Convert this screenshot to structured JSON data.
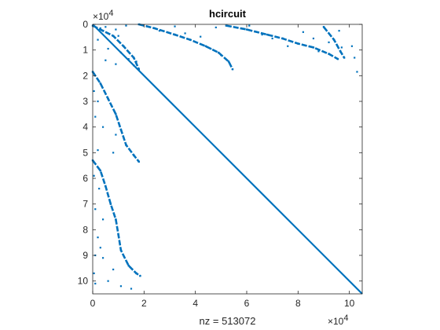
{
  "chart_data": {
    "type": "scatter",
    "subtype": "sparsity-pattern (spy)",
    "title": "hcircuit",
    "xlabel": "nz = 513072",
    "ylabel": "",
    "x_multiplier": "×10",
    "x_exponent": "4",
    "y_multiplier": "×10",
    "y_exponent": "4",
    "xlim": [
      0,
      10.5
    ],
    "ylim": [
      10.5,
      0
    ],
    "y_reversed": true,
    "xticks": [
      0,
      2,
      4,
      6,
      8,
      10
    ],
    "yticks": [
      0,
      1,
      2,
      3,
      4,
      5,
      6,
      7,
      8,
      9,
      10
    ],
    "xtick_labels": [
      "0",
      "2",
      "4",
      "6",
      "8",
      "10"
    ],
    "ytick_labels": [
      "0",
      "1",
      "2",
      "3",
      "4",
      "5",
      "6",
      "7",
      "8",
      "9",
      "10"
    ],
    "grid": false,
    "marker_color": "#0072BD",
    "series": [
      {
        "kind": "diagonal",
        "points": [
          [
            0,
            0
          ],
          [
            10.5,
            10.5
          ]
        ]
      },
      {
        "kind": "band",
        "points": [
          [
            0.0,
            0.05
          ],
          [
            0.4,
            0.25
          ],
          [
            0.8,
            0.45
          ],
          [
            1.2,
            0.85
          ],
          [
            1.6,
            1.3
          ],
          [
            1.8,
            1.75
          ]
        ]
      },
      {
        "kind": "band",
        "points": [
          [
            1.8,
            0.0
          ],
          [
            2.4,
            0.15
          ],
          [
            3.2,
            0.4
          ],
          [
            3.8,
            0.6
          ],
          [
            4.4,
            0.85
          ],
          [
            4.9,
            1.1
          ],
          [
            5.3,
            1.45
          ],
          [
            5.45,
            1.75
          ]
        ]
      },
      {
        "kind": "band",
        "points": [
          [
            5.2,
            0.05
          ],
          [
            6.0,
            0.2
          ],
          [
            6.8,
            0.4
          ],
          [
            7.4,
            0.55
          ],
          [
            8.0,
            0.75
          ],
          [
            8.6,
            0.9
          ],
          [
            9.2,
            1.15
          ],
          [
            9.55,
            1.35
          ]
        ]
      },
      {
        "kind": "band",
        "points": [
          [
            9.0,
            0.1
          ],
          [
            9.4,
            0.6
          ],
          [
            9.65,
            1.05
          ],
          [
            9.8,
            1.3
          ]
        ]
      },
      {
        "kind": "band",
        "points": [
          [
            0.0,
            1.85
          ],
          [
            0.3,
            2.3
          ],
          [
            0.6,
            2.9
          ],
          [
            0.9,
            3.5
          ],
          [
            1.1,
            4.1
          ],
          [
            1.3,
            4.7
          ],
          [
            1.6,
            5.1
          ],
          [
            1.8,
            5.35
          ]
        ]
      },
      {
        "kind": "band",
        "points": [
          [
            0.0,
            5.3
          ],
          [
            0.3,
            5.7
          ],
          [
            0.5,
            6.3
          ],
          [
            0.7,
            7.0
          ],
          [
            0.9,
            7.6
          ],
          [
            1.0,
            8.2
          ],
          [
            1.1,
            8.8
          ],
          [
            1.4,
            9.4
          ],
          [
            1.7,
            9.7
          ],
          [
            1.85,
            9.8
          ]
        ]
      },
      {
        "kind": "scatter",
        "points": [
          [
            0.3,
            0.15
          ],
          [
            0.5,
            0.1
          ],
          [
            0.9,
            0.2
          ],
          [
            1.0,
            0.45
          ],
          [
            1.3,
            0.05
          ],
          [
            0.2,
            0.6
          ],
          [
            0.6,
            0.95
          ],
          [
            1.1,
            1.1
          ],
          [
            1.4,
            1.35
          ],
          [
            1.7,
            1.45
          ],
          [
            0.9,
            1.55
          ],
          [
            1.6,
            1.6
          ],
          [
            0.5,
            1.4
          ],
          [
            2.6,
            0.25
          ],
          [
            3.2,
            0.08
          ],
          [
            3.6,
            0.35
          ],
          [
            4.2,
            0.48
          ],
          [
            4.8,
            0.12
          ],
          [
            4.6,
            0.95
          ],
          [
            5.0,
            1.2
          ],
          [
            6.1,
            0.05
          ],
          [
            6.6,
            0.4
          ],
          [
            7.0,
            0.55
          ],
          [
            7.6,
            0.85
          ],
          [
            8.2,
            0.3
          ],
          [
            8.6,
            0.55
          ],
          [
            8.8,
            1.05
          ],
          [
            9.2,
            0.7
          ],
          [
            9.6,
            0.25
          ],
          [
            9.7,
            0.9
          ],
          [
            10.1,
            0.85
          ],
          [
            10.3,
            1.85
          ],
          [
            10.2,
            1.3
          ],
          [
            0.05,
            2.6
          ],
          [
            0.2,
            3.0
          ],
          [
            0.1,
            3.6
          ],
          [
            0.4,
            4.0
          ],
          [
            0.2,
            4.9
          ],
          [
            0.8,
            5.0
          ],
          [
            0.9,
            4.3
          ],
          [
            0.05,
            5.9
          ],
          [
            0.25,
            6.4
          ],
          [
            0.1,
            7.2
          ],
          [
            0.4,
            7.6
          ],
          [
            0.3,
            8.7
          ],
          [
            0.1,
            9.0
          ],
          [
            0.4,
            9.1
          ],
          [
            0.05,
            9.7
          ],
          [
            0.1,
            10.1
          ],
          [
            0.6,
            10.0
          ],
          [
            1.1,
            10.2
          ],
          [
            1.5,
            10.3
          ],
          [
            0.8,
            9.55
          ],
          [
            0.2,
            8.3
          ]
        ]
      }
    ]
  }
}
